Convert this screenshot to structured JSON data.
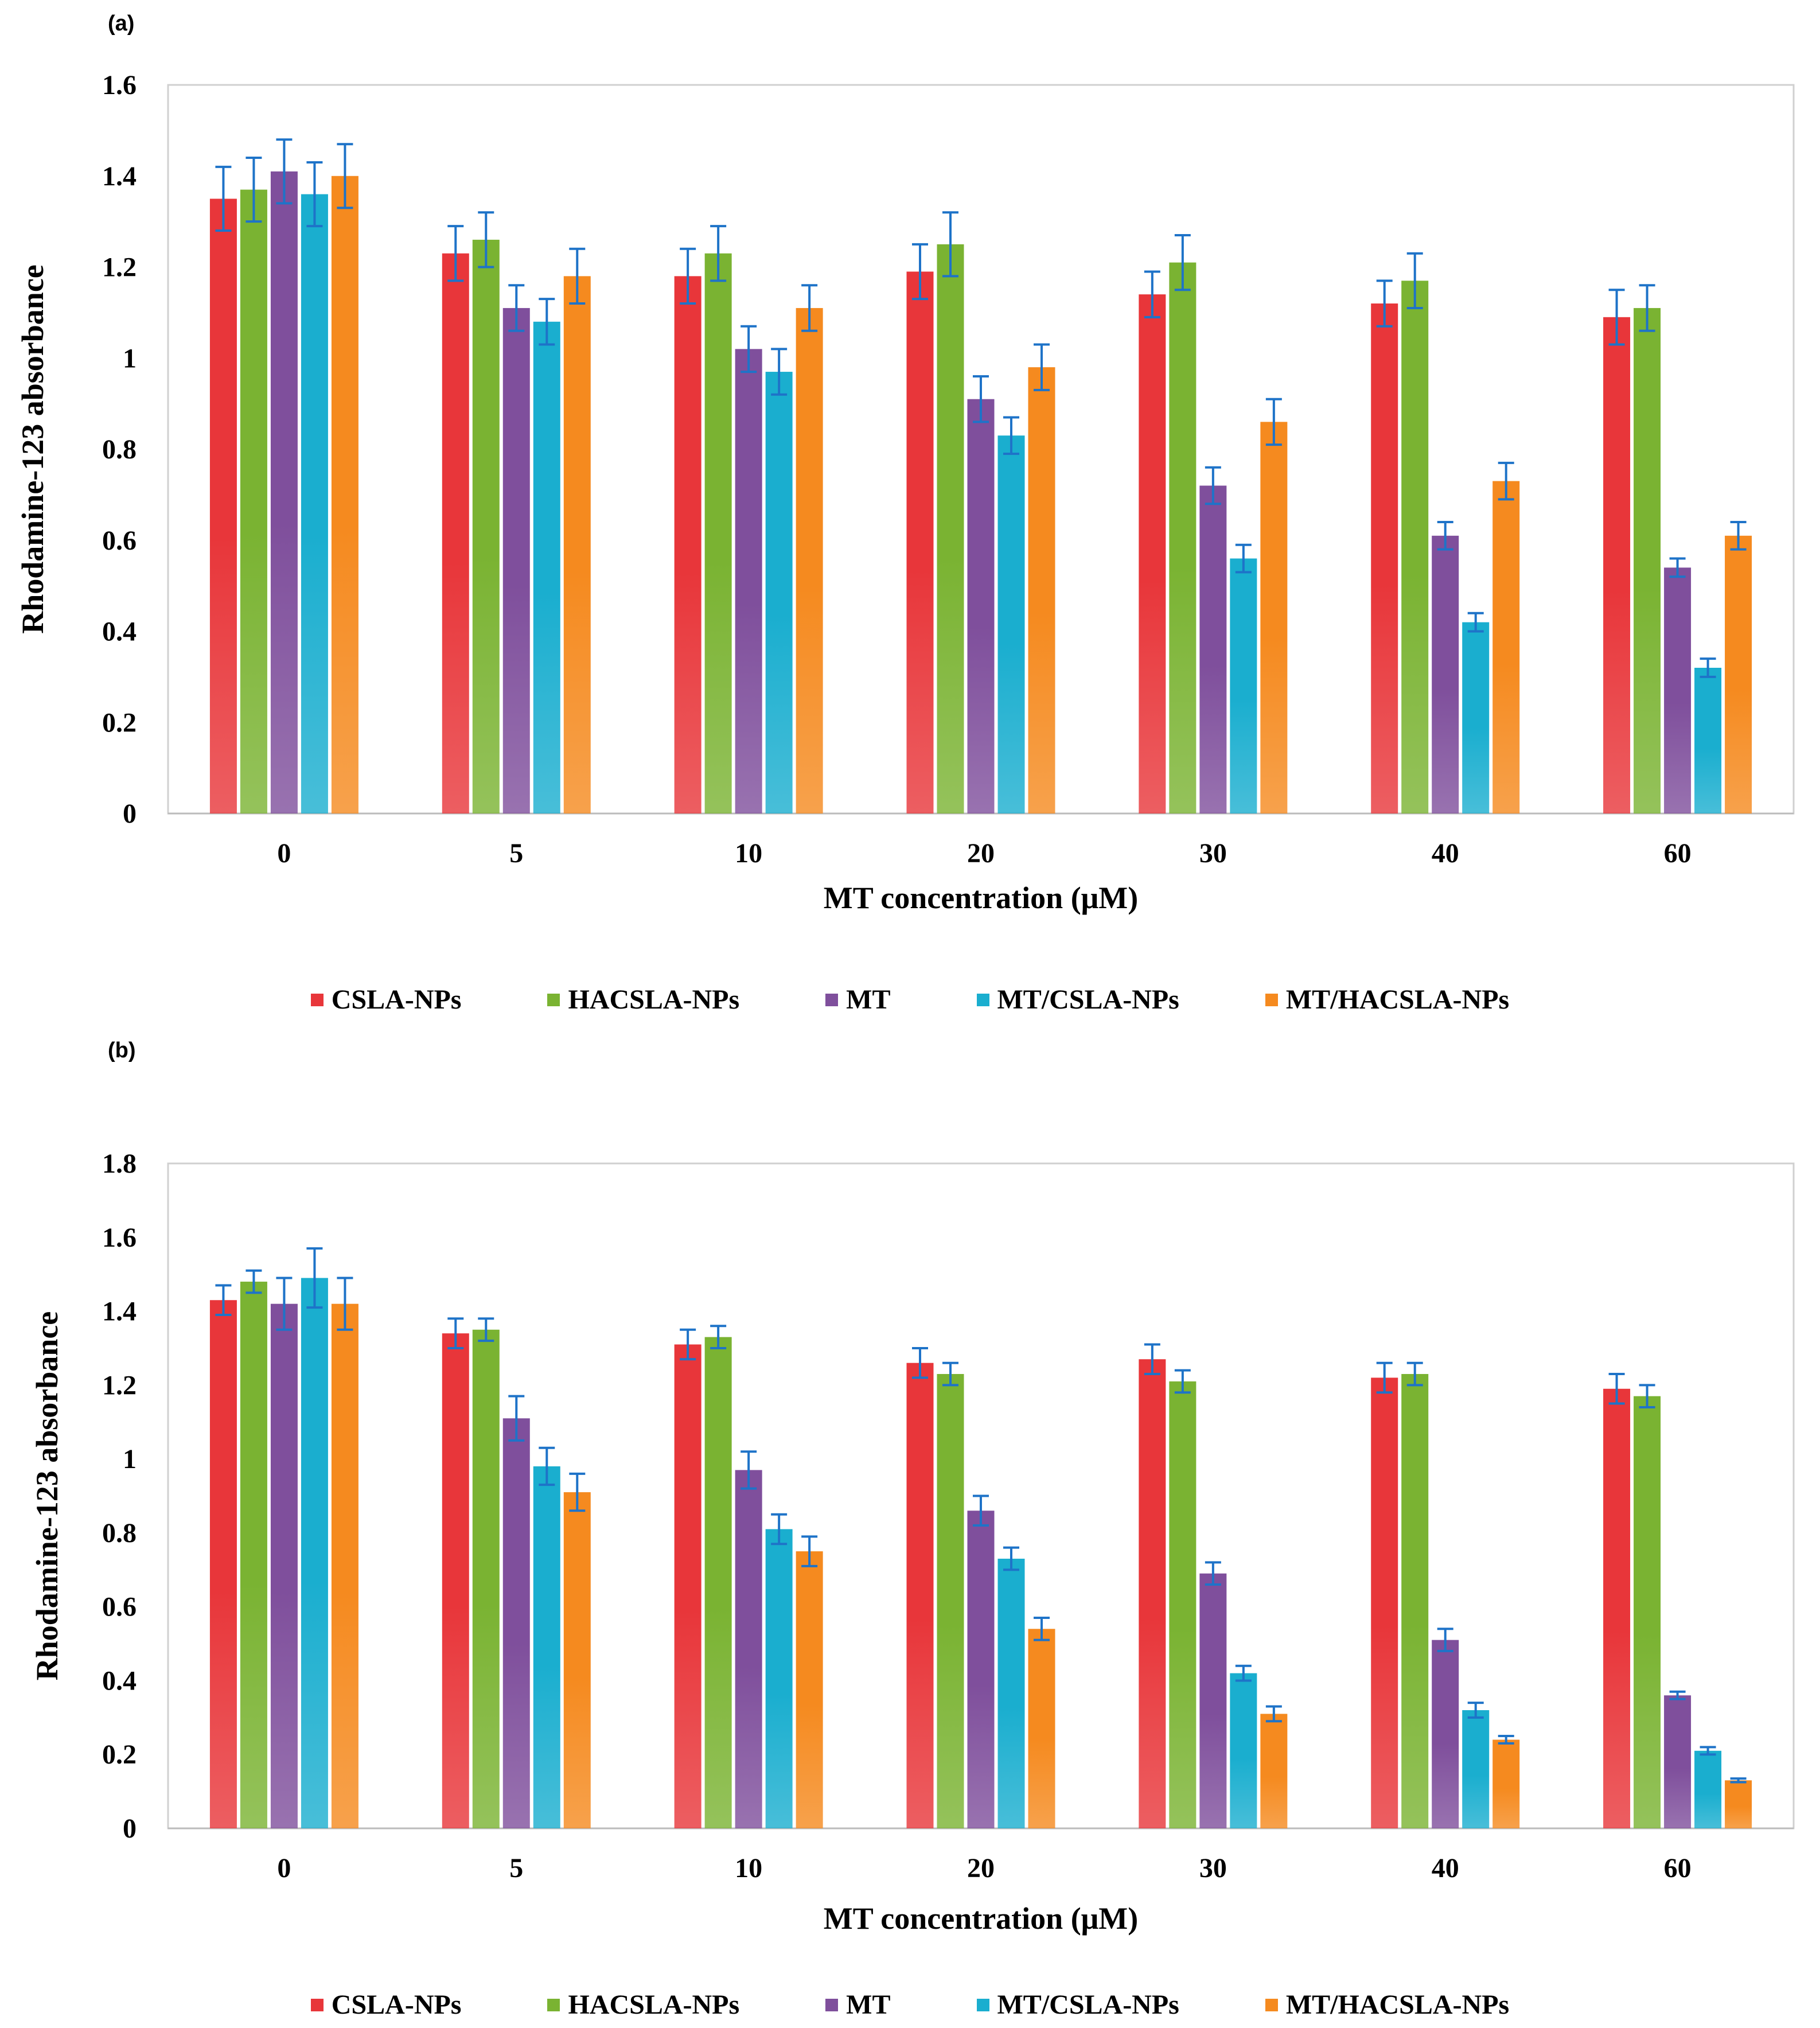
{
  "chart_data": [
    {
      "panel_label": "(a)",
      "type": "bar",
      "ylabel": "Rhodamine-123 absorbance",
      "xlabel": "MT concentration (μM)",
      "categories": [
        "0",
        "5",
        "10",
        "20",
        "30",
        "40",
        "60"
      ],
      "ylim": [
        0,
        1.6
      ],
      "yticks": [
        "0",
        "0.2",
        "0.4",
        "0.6",
        "0.8",
        "1",
        "1.2",
        "1.4",
        "1.6"
      ],
      "grid": false,
      "legend_position": "bottom",
      "series": [
        {
          "name": "CSLA-NPs",
          "color": "#e8363a",
          "values": [
            1.35,
            1.23,
            1.18,
            1.19,
            1.14,
            1.12,
            1.09
          ],
          "errors": [
            0.07,
            0.06,
            0.06,
            0.06,
            0.05,
            0.05,
            0.06
          ]
        },
        {
          "name": "HACSLA-NPs",
          "color": "#7ab332",
          "values": [
            1.37,
            1.26,
            1.23,
            1.25,
            1.21,
            1.17,
            1.11
          ],
          "errors": [
            0.07,
            0.06,
            0.06,
            0.07,
            0.06,
            0.06,
            0.05
          ]
        },
        {
          "name": "MT",
          "color": "#7f4f9c",
          "values": [
            1.41,
            1.11,
            1.02,
            0.91,
            0.72,
            0.61,
            0.54
          ],
          "errors": [
            0.07,
            0.05,
            0.05,
            0.05,
            0.04,
            0.03,
            0.02
          ]
        },
        {
          "name": "MT/CSLA-NPs",
          "color": "#1aaecf",
          "values": [
            1.36,
            1.08,
            0.97,
            0.83,
            0.56,
            0.42,
            0.32
          ],
          "errors": [
            0.07,
            0.05,
            0.05,
            0.04,
            0.03,
            0.02,
            0.02
          ]
        },
        {
          "name": "MT/HACSLA-NPs",
          "color": "#f58a1f",
          "values": [
            1.4,
            1.18,
            1.11,
            0.98,
            0.86,
            0.73,
            0.61
          ],
          "errors": [
            0.07,
            0.06,
            0.05,
            0.05,
            0.05,
            0.04,
            0.03
          ]
        }
      ]
    },
    {
      "panel_label": "(b)",
      "type": "bar",
      "ylabel": "Rhodamine-123 absorbance",
      "xlabel": "MT concentration (μM)",
      "categories": [
        "0",
        "5",
        "10",
        "20",
        "30",
        "40",
        "60"
      ],
      "ylim": [
        0,
        1.8
      ],
      "yticks": [
        "0",
        "0.2",
        "0.4",
        "0.6",
        "0.8",
        "1",
        "1.2",
        "1.4",
        "1.6",
        "1.8"
      ],
      "grid": false,
      "legend_position": "bottom",
      "series": [
        {
          "name": "CSLA-NPs",
          "color": "#e8363a",
          "values": [
            1.43,
            1.34,
            1.31,
            1.26,
            1.27,
            1.22,
            1.19
          ],
          "errors": [
            0.04,
            0.04,
            0.04,
            0.04,
            0.04,
            0.04,
            0.04
          ]
        },
        {
          "name": "HACSLA-NPs",
          "color": "#7ab332",
          "values": [
            1.48,
            1.35,
            1.33,
            1.23,
            1.21,
            1.23,
            1.17
          ],
          "errors": [
            0.03,
            0.03,
            0.03,
            0.03,
            0.03,
            0.03,
            0.03
          ]
        },
        {
          "name": "MT",
          "color": "#7f4f9c",
          "values": [
            1.42,
            1.11,
            0.97,
            0.86,
            0.69,
            0.51,
            0.36
          ],
          "errors": [
            0.07,
            0.06,
            0.05,
            0.04,
            0.03,
            0.03,
            0.01
          ]
        },
        {
          "name": "MT/CSLA-NPs",
          "color": "#1aaecf",
          "values": [
            1.49,
            0.98,
            0.81,
            0.73,
            0.42,
            0.32,
            0.21
          ],
          "errors": [
            0.08,
            0.05,
            0.04,
            0.03,
            0.02,
            0.02,
            0.01
          ]
        },
        {
          "name": "MT/HACSLA-NPs",
          "color": "#f58a1f",
          "values": [
            1.42,
            0.91,
            0.75,
            0.54,
            0.31,
            0.24,
            0.13
          ],
          "errors": [
            0.07,
            0.05,
            0.04,
            0.03,
            0.02,
            0.01,
            0.005
          ]
        }
      ]
    }
  ]
}
